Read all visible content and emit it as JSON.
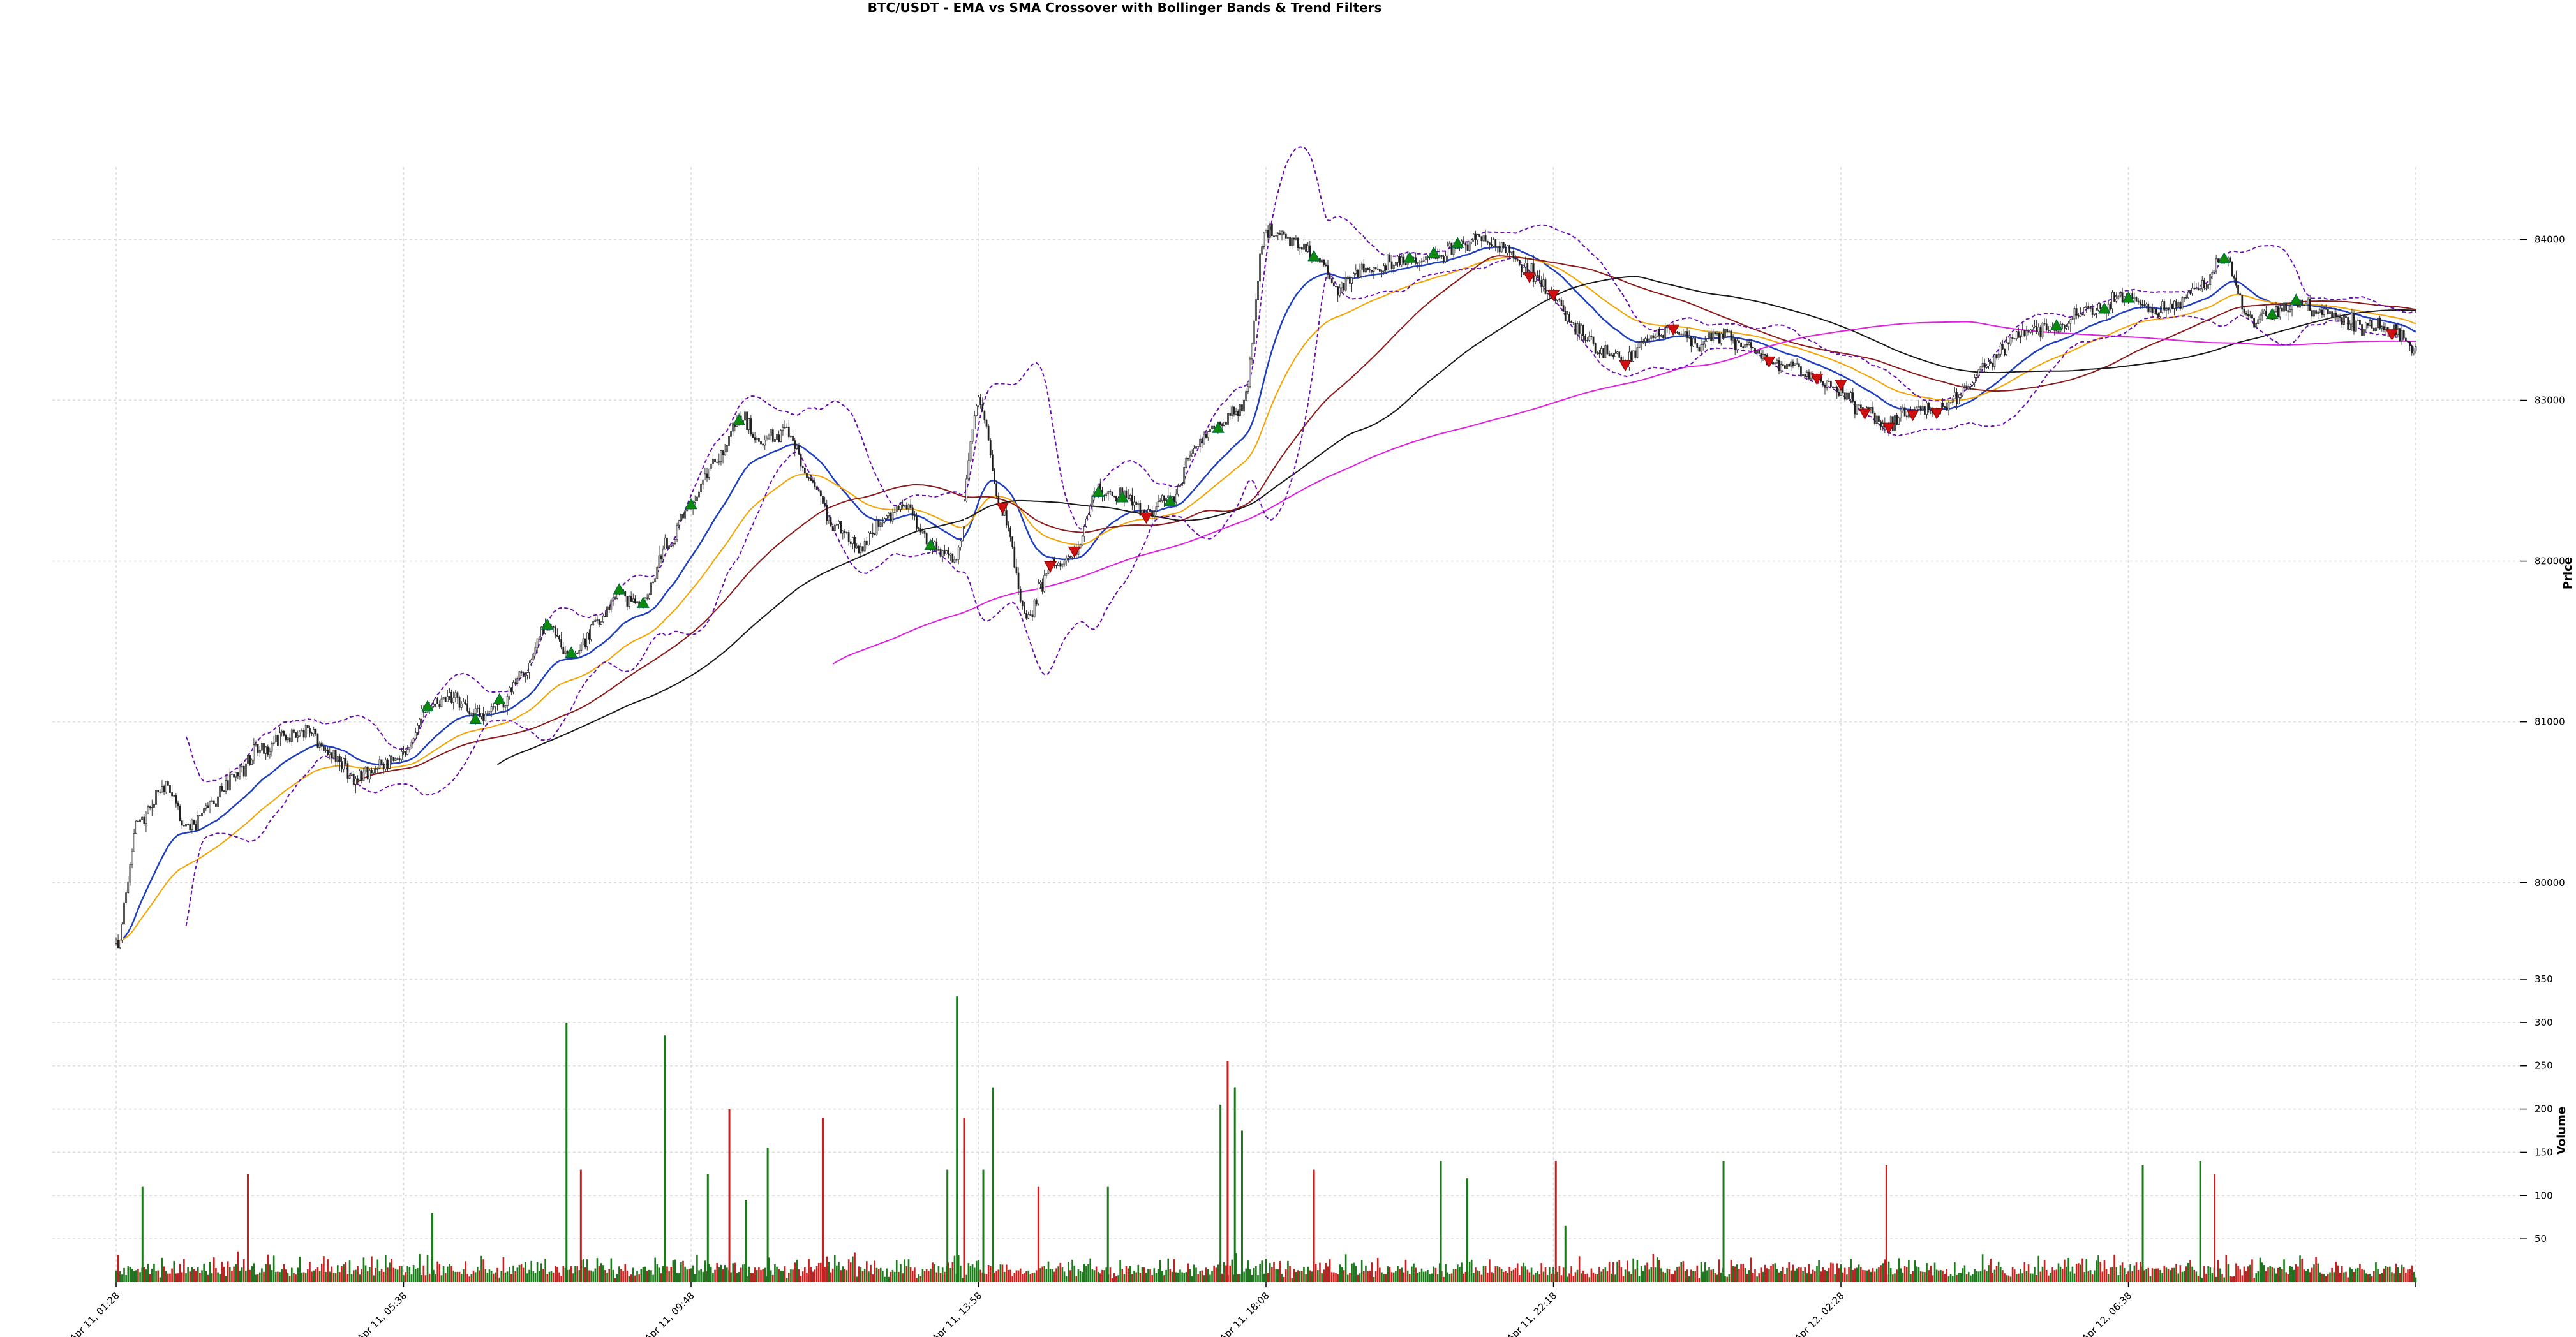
{
  "chart_data": {
    "type": "candlestick",
    "title": "BTC/USDT - EMA vs SMA Crossover with Bollinger Bands & Trend Filters",
    "price_panel": {
      "ylabel": "Price",
      "ylim": [
        79400,
        84450
      ],
      "yticks": [
        80000,
        81000,
        82000,
        83000,
        84000
      ],
      "ytick_labels": [
        "80000",
        "81000",
        "82000",
        "83000",
        "84000"
      ],
      "grid": true,
      "y_axis_side": "right"
    },
    "volume_panel": {
      "ylabel": "Volume",
      "ylim": [
        0,
        350
      ],
      "yticks": [
        50,
        100,
        150,
        200,
        250,
        300,
        350
      ],
      "ytick_labels": [
        "50",
        "100",
        "150",
        "200",
        "250",
        "300",
        "350"
      ],
      "grid": true,
      "y_axis_side": "right"
    },
    "x_axis": {
      "range_index": [
        0,
        96
      ],
      "ticks_index": [
        0,
        12,
        24,
        36,
        48,
        60,
        72,
        84,
        96
      ],
      "tick_labels": [
        "Apr 11, 01:28",
        "Apr 11, 05:38",
        "Apr 11, 09:48",
        "Apr 11, 13:58",
        "Apr 11, 18:08",
        "Apr 11, 22:18",
        "Apr 12, 02:28",
        "Apr 12, 06:38",
        ""
      ],
      "tick_rotation_deg": 45
    },
    "close_anchors": [
      [
        0,
        79620
      ],
      [
        1,
        80400
      ],
      [
        2,
        80600
      ],
      [
        3,
        80350
      ],
      [
        4,
        80500
      ],
      [
        5,
        80680
      ],
      [
        6,
        80820
      ],
      [
        7,
        80900
      ],
      [
        8,
        80950
      ],
      [
        9,
        80800
      ],
      [
        10,
        80650
      ],
      [
        11,
        80720
      ],
      [
        12,
        80800
      ],
      [
        13,
        81100
      ],
      [
        14,
        81150
      ],
      [
        15,
        81050
      ],
      [
        16,
        81100
      ],
      [
        17,
        81300
      ],
      [
        18,
        81600
      ],
      [
        19,
        81400
      ],
      [
        20,
        81600
      ],
      [
        21,
        81800
      ],
      [
        22,
        81700
      ],
      [
        23,
        82100
      ],
      [
        24,
        82350
      ],
      [
        25,
        82600
      ],
      [
        26,
        82900
      ],
      [
        27,
        82750
      ],
      [
        28,
        82800
      ],
      [
        29,
        82500
      ],
      [
        30,
        82200
      ],
      [
        31,
        82100
      ],
      [
        32,
        82250
      ],
      [
        33,
        82350
      ],
      [
        34,
        82100
      ],
      [
        35,
        82000
      ],
      [
        36,
        83000
      ],
      [
        37,
        82300
      ],
      [
        38,
        81650
      ],
      [
        39,
        81950
      ],
      [
        40,
        82050
      ],
      [
        41,
        82450
      ],
      [
        42,
        82400
      ],
      [
        43,
        82300
      ],
      [
        44,
        82400
      ],
      [
        45,
        82700
      ],
      [
        46,
        82850
      ],
      [
        47,
        82950
      ],
      [
        48,
        84050
      ],
      [
        49,
        84000
      ],
      [
        50,
        83900
      ],
      [
        51,
        83700
      ],
      [
        52,
        83800
      ],
      [
        53,
        83850
      ],
      [
        54,
        83850
      ],
      [
        55,
        83900
      ],
      [
        56,
        83950
      ],
      [
        57,
        84000
      ],
      [
        58,
        83950
      ],
      [
        59,
        83800
      ],
      [
        60,
        83650
      ],
      [
        61,
        83450
      ],
      [
        62,
        83300
      ],
      [
        63,
        83250
      ],
      [
        64,
        83400
      ],
      [
        65,
        83450
      ],
      [
        66,
        83350
      ],
      [
        67,
        83400
      ],
      [
        68,
        83350
      ],
      [
        69,
        83250
      ],
      [
        70,
        83200
      ],
      [
        71,
        83150
      ],
      [
        72,
        83050
      ],
      [
        73,
        82950
      ],
      [
        74,
        82850
      ],
      [
        75,
        82950
      ],
      [
        76,
        82950
      ],
      [
        77,
        83050
      ],
      [
        78,
        83200
      ],
      [
        79,
        83350
      ],
      [
        80,
        83450
      ],
      [
        81,
        83450
      ],
      [
        82,
        83550
      ],
      [
        83,
        83600
      ],
      [
        84,
        83650
      ],
      [
        85,
        83550
      ],
      [
        86,
        83600
      ],
      [
        87,
        83700
      ],
      [
        88,
        83900
      ],
      [
        89,
        83500
      ],
      [
        90,
        83550
      ],
      [
        91,
        83600
      ],
      [
        92,
        83550
      ],
      [
        93,
        83500
      ],
      [
        94,
        83450
      ],
      [
        95,
        83450
      ],
      [
        96,
        83300
      ]
    ],
    "indicators": [
      {
        "key": "ema_fast",
        "period": 3,
        "color": "#1f3fbf"
      },
      {
        "key": "ema_slow",
        "period": 6,
        "color": "#f4a300"
      },
      {
        "key": "sma_mid",
        "period": 10,
        "color": "#8b1a1a"
      },
      {
        "key": "sma_long",
        "period": 16,
        "color": "#1a1a1a"
      },
      {
        "key": "trend_ma",
        "period": 30,
        "color": "#e020e0"
      },
      {
        "key": "bollinger",
        "period": 3,
        "color": "#6a0dad",
        "style": "dashed"
      }
    ],
    "buy_signals_index": [
      13,
      15,
      16,
      18,
      19,
      21,
      22,
      24,
      26,
      34,
      41,
      42,
      44,
      46,
      50,
      54,
      55,
      56,
      81,
      83,
      84,
      88,
      90,
      91
    ],
    "sell_signals_index": [
      37,
      39,
      40,
      43,
      59,
      60,
      63,
      65,
      69,
      71,
      72,
      73,
      74,
      75,
      76,
      95
    ],
    "volume_spikes": [
      [
        1.1,
        110
      ],
      [
        5.5,
        125
      ],
      [
        13.2,
        80
      ],
      [
        18.8,
        300
      ],
      [
        19.4,
        130
      ],
      [
        22.9,
        285
      ],
      [
        24.7,
        125
      ],
      [
        25.6,
        200
      ],
      [
        26.3,
        95
      ],
      [
        27.2,
        155
      ],
      [
        29.5,
        190
      ],
      [
        34.7,
        130
      ],
      [
        35.1,
        330
      ],
      [
        35.4,
        190
      ],
      [
        36.2,
        130
      ],
      [
        36.6,
        225
      ],
      [
        38.5,
        110
      ],
      [
        41.4,
        110
      ],
      [
        46.1,
        205
      ],
      [
        46.4,
        255
      ],
      [
        46.7,
        225
      ],
      [
        47.0,
        175
      ],
      [
        50.0,
        130
      ],
      [
        55.3,
        140
      ],
      [
        56.4,
        120
      ],
      [
        60.1,
        140
      ],
      [
        60.5,
        65
      ],
      [
        67.1,
        140
      ],
      [
        73.9,
        135
      ],
      [
        84.6,
        135
      ],
      [
        87.0,
        140
      ],
      [
        87.6,
        125
      ]
    ],
    "colors": {
      "up": "#1a7a1a",
      "down": "#c81e1e",
      "buy_marker": "#0b8a0b",
      "sell_marker": "#d01010",
      "grid": "#dcdcdc",
      "background": "#ffffff"
    }
  }
}
